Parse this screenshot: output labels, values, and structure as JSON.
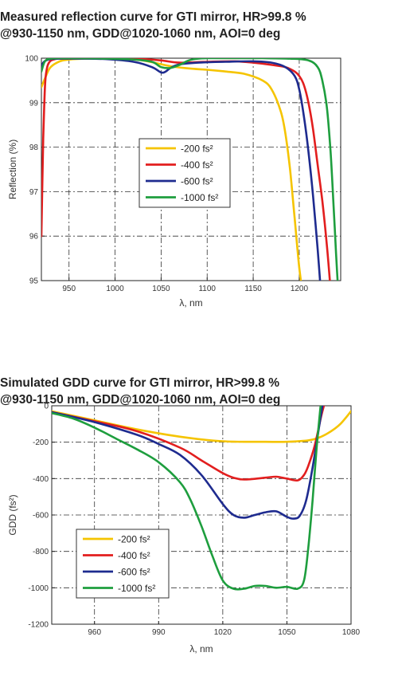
{
  "charts": [
    {
      "title_lines": [
        "Measured reflection curve for GTI mirror, HR>99.8 %",
        "@930-1150 nm, GDD@1020-1060 nm, AOI=0 deg"
      ],
      "ylabel": "Reflection (%)",
      "xlabel": "λ, nm"
    },
    {
      "title_lines": [
        "Simulated GDD curve for GTI mirror, HR>99.8 %",
        "@930-1150 nm, GDD@1020-1060 nm, AOI=0 deg"
      ],
      "ylabel": "GDD (fs²)",
      "xlabel": "λ, nm"
    }
  ],
  "chart_data": [
    {
      "type": "line",
      "title": "Measured reflection curve for GTI mirror, HR>99.8 % @930-1150 nm, GDD@1020-1060 nm, AOI=0 deg",
      "xlabel": "λ, nm",
      "ylabel": "Reflection (%)",
      "xlim": [
        920,
        1245
      ],
      "ylim": [
        95,
        100
      ],
      "xticks": [
        950,
        1000,
        1050,
        1100,
        1150,
        1200
      ],
      "yticks": [
        95,
        96,
        97,
        98,
        99,
        100
      ],
      "grid": true,
      "legend_position": "center-right",
      "series": [
        {
          "name": "-200 fs²",
          "color": "#f5c400",
          "x": [
            920,
            925,
            930,
            940,
            950,
            970,
            1000,
            1030,
            1060,
            1080,
            1100,
            1120,
            1140,
            1160,
            1170,
            1180,
            1185,
            1190,
            1195,
            1200,
            1205
          ],
          "y": [
            99.35,
            99.6,
            99.8,
            99.93,
            99.97,
            99.99,
            99.99,
            99.95,
            99.82,
            99.77,
            99.74,
            99.7,
            99.65,
            99.5,
            99.3,
            98.8,
            98.3,
            97.5,
            96.4,
            95.3,
            94.5
          ]
        },
        {
          "name": "-400 fs²",
          "color": "#e21e1e",
          "x": [
            920,
            921,
            922,
            923,
            924,
            925,
            927,
            930,
            935,
            940,
            950,
            970,
            1000,
            1030,
            1050,
            1070,
            1100,
            1130,
            1150,
            1170,
            1185,
            1195,
            1200,
            1205,
            1210,
            1215,
            1220,
            1225,
            1230,
            1234
          ],
          "y": [
            96.0,
            97.2,
            98.2,
            98.9,
            99.4,
            99.65,
            99.85,
            99.94,
            99.98,
            99.99,
            100.0,
            100.0,
            100.0,
            99.98,
            99.95,
            99.9,
            99.92,
            99.93,
            99.9,
            99.85,
            99.8,
            99.7,
            99.6,
            99.4,
            99.0,
            98.4,
            97.6,
            96.8,
            95.8,
            94.8
          ]
        },
        {
          "name": "-600 fs²",
          "color": "#1e2b8f",
          "x": [
            920,
            922,
            925,
            930,
            940,
            960,
            990,
            1020,
            1040,
            1050,
            1055,
            1060,
            1070,
            1090,
            1120,
            1150,
            1170,
            1185,
            1195,
            1200,
            1205,
            1210,
            1215,
            1220,
            1224
          ],
          "y": [
            99.8,
            99.9,
            99.95,
            99.98,
            99.99,
            99.99,
            99.98,
            99.92,
            99.8,
            99.68,
            99.7,
            99.78,
            99.86,
            99.9,
            99.92,
            99.93,
            99.9,
            99.8,
            99.6,
            99.3,
            98.7,
            97.9,
            96.9,
            95.7,
            94.6
          ]
        },
        {
          "name": "-1000 fs²",
          "color": "#1e9e3e",
          "x": [
            920,
            923,
            926,
            930,
            940,
            960,
            990,
            1020,
            1040,
            1050,
            1060,
            1070,
            1080,
            1090,
            1100,
            1130,
            1160,
            1190,
            1210,
            1220,
            1225,
            1230,
            1234,
            1237,
            1240,
            1243
          ],
          "y": [
            99.7,
            99.9,
            99.97,
            99.99,
            100.0,
            100.0,
            99.99,
            99.97,
            99.92,
            99.8,
            99.78,
            99.85,
            99.95,
            99.99,
            100.0,
            100.0,
            100.0,
            99.99,
            99.95,
            99.8,
            99.5,
            98.9,
            97.9,
            96.8,
            95.6,
            94.5
          ]
        }
      ]
    },
    {
      "type": "line",
      "title": "Simulated GDD curve for GTI mirror, HR>99.8 % @930-1150 nm, GDD@1020-1060 nm, AOI=0 deg",
      "xlabel": "λ, nm",
      "ylabel": "GDD (fs²)",
      "xlim": [
        940,
        1080
      ],
      "ylim": [
        -1200,
        0
      ],
      "xticks": [
        960,
        990,
        1020,
        1050,
        1080
      ],
      "yticks": [
        0,
        -200,
        -400,
        -600,
        -800,
        -1000,
        -1200
      ],
      "grid": true,
      "legend_position": "bottom-left",
      "series": [
        {
          "name": "-200 fs²",
          "color": "#f5c400",
          "x": [
            940,
            960,
            980,
            1000,
            1020,
            1040,
            1050,
            1060,
            1065,
            1070,
            1075,
            1080
          ],
          "y": [
            -30,
            -80,
            -130,
            -170,
            -195,
            -198,
            -198,
            -190,
            -175,
            -145,
            -100,
            -30
          ]
        },
        {
          "name": "-400 fs²",
          "color": "#e21e1e",
          "x": [
            940,
            960,
            980,
            1000,
            1010,
            1020,
            1025,
            1030,
            1040,
            1045,
            1050,
            1055,
            1058,
            1060,
            1063,
            1066,
            1068
          ],
          "y": [
            -35,
            -85,
            -140,
            -230,
            -300,
            -370,
            -395,
            -405,
            -395,
            -390,
            -400,
            -410,
            -380,
            -330,
            -220,
            -60,
            30
          ]
        },
        {
          "name": "-600 fs²",
          "color": "#1e2b8f",
          "x": [
            940,
            960,
            980,
            990,
            1000,
            1010,
            1020,
            1025,
            1030,
            1035,
            1040,
            1045,
            1050,
            1053,
            1056,
            1059,
            1062,
            1065,
            1067
          ],
          "y": [
            -35,
            -90,
            -160,
            -210,
            -270,
            -380,
            -540,
            -600,
            -615,
            -600,
            -585,
            -580,
            -610,
            -620,
            -605,
            -520,
            -340,
            -120,
            30
          ]
        },
        {
          "name": "-1000 fs²",
          "color": "#1e9e3e",
          "x": [
            940,
            950,
            960,
            970,
            980,
            990,
            1000,
            1005,
            1010,
            1015,
            1020,
            1025,
            1030,
            1035,
            1040,
            1045,
            1050,
            1055,
            1058,
            1060,
            1062,
            1064,
            1066
          ],
          "y": [
            -40,
            -70,
            -120,
            -180,
            -240,
            -310,
            -420,
            -520,
            -660,
            -820,
            -960,
            -1005,
            -1005,
            -990,
            -990,
            -1000,
            -995,
            -1005,
            -960,
            -780,
            -520,
            -220,
            30
          ]
        }
      ]
    }
  ]
}
